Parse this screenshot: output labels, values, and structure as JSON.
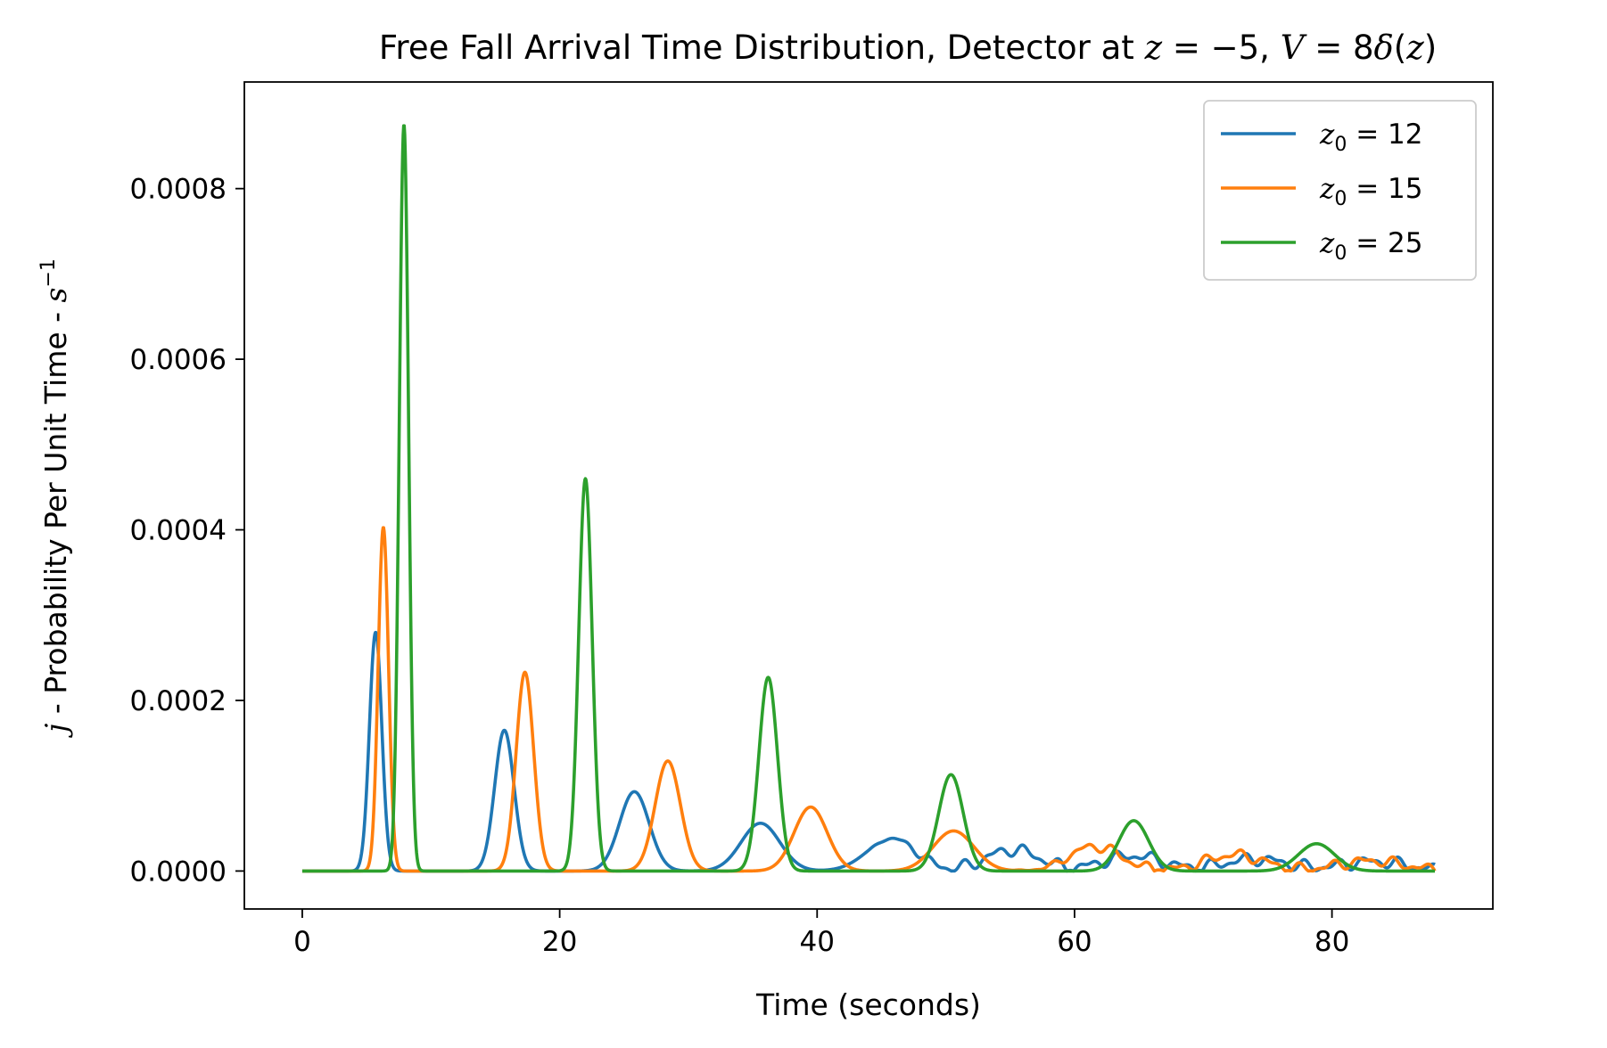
{
  "chart_data": {
    "type": "line",
    "title": "Free Fall Arrival Time Distribution, Detector at z = −5, V = 8δ(z)",
    "title_parts": {
      "prefix": "Free Fall Arrival Time Distribution, Detector at ",
      "eq1_var": "z",
      "eq1_rest": " = −5",
      "sep": ", ",
      "eq2_var": "V",
      "eq2_mid": " = 8",
      "eq2_delta": "δ",
      "eq2_open": "(",
      "eq2_arg": "z",
      "eq2_close": ")"
    },
    "xlabel": "Time (seconds)",
    "ylabel": "j - Probability Per Unit Time - s⁻¹",
    "ylabel_parts": {
      "var": "j",
      "text": " - Probability Per Unit Time - ",
      "unit": "s",
      "unit_exp": "−1"
    },
    "xlim": [
      -4.5,
      92.5
    ],
    "ylim": [
      -4.45e-05,
      0.000925
    ],
    "xticks": [
      0,
      20,
      40,
      60,
      80
    ],
    "xtick_labels": [
      "0",
      "20",
      "40",
      "60",
      "80"
    ],
    "yticks": [
      0,
      0.0002,
      0.0004,
      0.0006,
      0.0008
    ],
    "ytick_labels": [
      "0.0000",
      "0.0002",
      "0.0004",
      "0.0006",
      "0.0008"
    ],
    "grid": false,
    "legend_position": "upper right",
    "x_range": [
      0,
      88
    ],
    "series": [
      {
        "name": "z₀ = 12",
        "legend_var": "z",
        "legend_sub": "0",
        "legend_value": " = 12",
        "color": "#1f77b4",
        "peaks": [
          {
            "t": 5.7,
            "h": 0.00028,
            "w": 0.48
          },
          {
            "t": 15.7,
            "h": 0.000165,
            "w": 0.75
          },
          {
            "t": 25.8,
            "h": 9.3e-05,
            "w": 1.15
          },
          {
            "t": 35.6,
            "h": 5.6e-05,
            "w": 1.5
          },
          {
            "t": 45.8,
            "h": 3.8e-05,
            "w": 1.9
          },
          {
            "t": 55.2,
            "h": 2.5e-05,
            "w": 2.1
          },
          {
            "t": 64.5,
            "h": 1.8e-05,
            "w": 2.3
          },
          {
            "t": 74.0,
            "h": 1.4e-05,
            "w": 2.5
          },
          {
            "t": 83.2,
            "h": 1.1e-05,
            "w": 2.6
          }
        ],
        "ripple_start": 44,
        "ripple_amp": 8e-06
      },
      {
        "name": "z₀ = 15",
        "legend_var": "z",
        "legend_sub": "0",
        "legend_value": " = 15",
        "color": "#ff7f0e",
        "peaks": [
          {
            "t": 6.3,
            "h": 0.000403,
            "w": 0.4
          },
          {
            "t": 17.3,
            "h": 0.000233,
            "w": 0.68
          },
          {
            "t": 28.4,
            "h": 0.000129,
            "w": 0.98
          },
          {
            "t": 39.5,
            "h": 7.5e-05,
            "w": 1.28
          },
          {
            "t": 50.6,
            "h": 4.7e-05,
            "w": 1.58
          },
          {
            "t": 61.6,
            "h": 2.9e-05,
            "w": 2.0
          },
          {
            "t": 72.4,
            "h": 1.9e-05,
            "w": 2.3
          },
          {
            "t": 83.0,
            "h": 1.2e-05,
            "w": 2.6
          }
        ],
        "ripple_start": 55,
        "ripple_amp": 7e-06
      },
      {
        "name": "z₀ = 25",
        "legend_var": "z",
        "legend_sub": "0",
        "legend_value": " = 25",
        "color": "#2ca02c",
        "peaks": [
          {
            "t": 7.9,
            "h": 0.000875,
            "w": 0.36
          },
          {
            "t": 22.0,
            "h": 0.00046,
            "w": 0.52
          },
          {
            "t": 36.2,
            "h": 0.000227,
            "w": 0.72
          },
          {
            "t": 50.4,
            "h": 0.000113,
            "w": 0.95
          },
          {
            "t": 64.6,
            "h": 5.9e-05,
            "w": 1.15
          },
          {
            "t": 78.8,
            "h": 3.2e-05,
            "w": 1.4
          }
        ],
        "ripple_start": 88,
        "ripple_amp": 0
      }
    ]
  }
}
